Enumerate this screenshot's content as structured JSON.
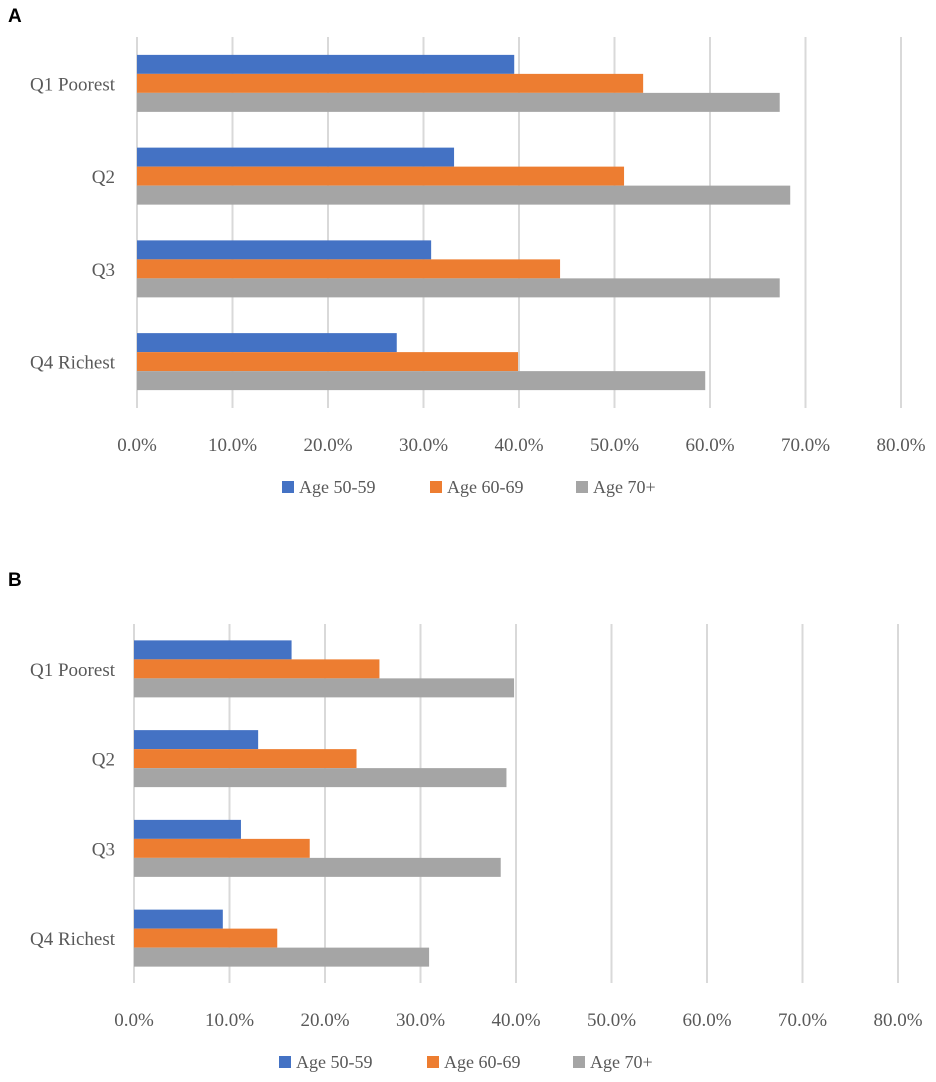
{
  "chart_data": [
    {
      "panel": "A",
      "type": "bar",
      "orientation": "horizontal",
      "categories": [
        "Q1 Poorest",
        "Q2",
        "Q3",
        "Q4 Richest"
      ],
      "series": [
        {
          "name": "Age 50-59",
          "values": [
            39.5,
            33.2,
            30.8,
            27.2
          ]
        },
        {
          "name": "Age 60-69",
          "values": [
            53.0,
            51.0,
            44.3,
            39.9
          ]
        },
        {
          "name": "Age 70+",
          "values": [
            67.3,
            68.4,
            67.3,
            59.5
          ]
        }
      ],
      "xlim": [
        0,
        80
      ],
      "xticks": [
        "0.0%",
        "10.0%",
        "20.0%",
        "30.0%",
        "40.0%",
        "50.0%",
        "60.0%",
        "70.0%",
        "80.0%"
      ],
      "grid": true,
      "legend": "bottom"
    },
    {
      "panel": "B",
      "type": "bar",
      "orientation": "horizontal",
      "categories": [
        "Q1 Poorest",
        "Q2",
        "Q3",
        "Q4 Richest"
      ],
      "series": [
        {
          "name": "Age 50-59",
          "values": [
            16.5,
            13.0,
            11.2,
            9.3
          ]
        },
        {
          "name": "Age 60-69",
          "values": [
            25.7,
            23.3,
            18.4,
            15.0
          ]
        },
        {
          "name": "Age 70+",
          "values": [
            39.8,
            39.0,
            38.4,
            30.9
          ]
        }
      ],
      "xlim": [
        0,
        80
      ],
      "xticks": [
        "0.0%",
        "10.0%",
        "20.0%",
        "30.0%",
        "40.0%",
        "50.0%",
        "60.0%",
        "70.0%",
        "80.0%"
      ],
      "grid": true,
      "legend": "bottom"
    }
  ],
  "colors": {
    "Age 50-59": "#4472c4",
    "Age 60-69": "#ed7d31",
    "Age 70+": "#a5a5a5"
  }
}
